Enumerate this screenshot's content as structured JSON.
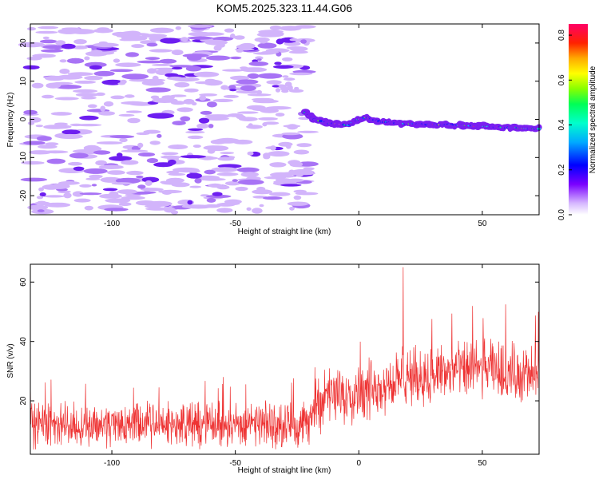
{
  "title": "KOM5.2025.323.11.44.G06",
  "chart_data": [
    {
      "type": "heatmap",
      "xlabel": "Height of straight line (km)",
      "ylabel": "Frequency (Hz)",
      "xlim": [
        -133,
        73
      ],
      "ylim": [
        -25,
        25
      ],
      "xticks": [
        -100,
        -50,
        0,
        50
      ],
      "yticks": [
        -20,
        -10,
        0,
        10,
        20
      ],
      "signal_track": [
        {
          "x": -22,
          "y": 2
        },
        {
          "x": -18,
          "y": 0
        },
        {
          "x": -12,
          "y": -1
        },
        {
          "x": -4,
          "y": -1.5
        },
        {
          "x": 0,
          "y": 0
        },
        {
          "x": 3,
          "y": 0.5
        },
        {
          "x": 8,
          "y": -0.5
        },
        {
          "x": 15,
          "y": -1
        },
        {
          "x": 25,
          "y": -1.3
        },
        {
          "x": 40,
          "y": -1.5
        },
        {
          "x": 55,
          "y": -2
        },
        {
          "x": 73,
          "y": -2.5
        }
      ],
      "colorbar": {
        "label": "Normalized spectral amplitude",
        "range": [
          0,
          0.85
        ],
        "ticks": [
          "0.0",
          "0.2",
          "0.4",
          "0.6",
          "0.8"
        ]
      }
    },
    {
      "type": "line",
      "xlabel": "Height of straight line (km)",
      "ylabel": "SNR (v/v)",
      "xlim": [
        -133,
        73
      ],
      "ylim": [
        2,
        66
      ],
      "xticks": [
        -100,
        -50,
        0,
        50
      ],
      "yticks": [
        20,
        40,
        60
      ],
      "series": [
        {
          "name": "SNR",
          "color": "#ee3333",
          "envelope": [
            {
              "x": -133,
              "mean": 12,
              "spread": 9
            },
            {
              "x": -100,
              "mean": 12,
              "spread": 9
            },
            {
              "x": -50,
              "mean": 12,
              "spread": 9
            },
            {
              "x": -20,
              "mean": 12,
              "spread": 9
            },
            {
              "x": -18,
              "mean": 20,
              "spread": 12
            },
            {
              "x": 0,
              "mean": 23,
              "spread": 12
            },
            {
              "x": 20,
              "mean": 28,
              "spread": 12
            },
            {
              "x": 50,
              "mean": 31,
              "spread": 12
            },
            {
              "x": 73,
              "mean": 28,
              "spread": 12
            }
          ],
          "peak": {
            "x": 18,
            "y": 65
          }
        }
      ]
    }
  ]
}
